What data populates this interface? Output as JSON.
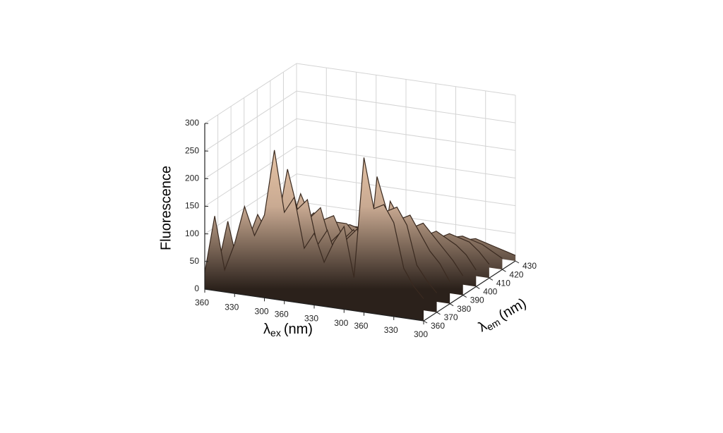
{
  "chart_data": {
    "type": "surface",
    "zlabel": "Fluorescence",
    "xlabel": {
      "symbol": "λ",
      "sub": "ex",
      "unit": "(nm)"
    },
    "ylabel": {
      "symbol": "λ",
      "sub": "em",
      "unit": "(nm)"
    },
    "xlim": [
      0,
      22
    ],
    "xticks": [
      {
        "value": 0,
        "label": "360"
      },
      {
        "value": 3,
        "label": "330"
      },
      {
        "value": 6,
        "label": "300"
      },
      {
        "value": 8,
        "label": "360"
      },
      {
        "value": 11,
        "label": "330"
      },
      {
        "value": 14,
        "label": "300"
      },
      {
        "value": 16,
        "label": "360"
      },
      {
        "value": 19,
        "label": "330"
      },
      {
        "value": 22,
        "label": "300"
      }
    ],
    "ylim": [
      360,
      430
    ],
    "yticks": [
      360,
      370,
      380,
      390,
      400,
      410,
      420,
      430
    ],
    "zlim": [
      0,
      300
    ],
    "zticks": [
      0,
      50,
      100,
      150,
      200,
      250,
      300
    ],
    "grid": true,
    "color": "#3a2a20",
    "y": [
      360,
      370,
      380,
      390,
      400,
      410,
      420,
      430
    ],
    "z": [
      [
        30,
        135,
        40,
        90,
        160,
        110,
        150,
        270,
        160,
        190,
        100,
        130,
        80,
        120,
        150,
        60,
        280,
        190,
        200,
        170,
        90,
        60,
        40
      ],
      [
        25,
        110,
        35,
        80,
        130,
        100,
        120,
        220,
        150,
        170,
        90,
        120,
        70,
        110,
        130,
        55,
        230,
        170,
        180,
        150,
        80,
        55,
        35
      ],
      [
        20,
        80,
        30,
        70,
        100,
        90,
        100,
        160,
        120,
        140,
        80,
        100,
        60,
        90,
        110,
        50,
        170,
        140,
        150,
        120,
        90,
        70,
        40
      ],
      [
        15,
        60,
        30,
        60,
        80,
        80,
        90,
        110,
        100,
        110,
        70,
        90,
        60,
        80,
        90,
        60,
        120,
        110,
        120,
        100,
        80,
        60,
        35
      ],
      [
        10,
        40,
        30,
        50,
        60,
        70,
        70,
        80,
        80,
        80,
        60,
        70,
        60,
        70,
        70,
        60,
        80,
        80,
        90,
        80,
        70,
        55,
        30
      ],
      [
        10,
        30,
        25,
        40,
        45,
        50,
        50,
        55,
        60,
        55,
        50,
        55,
        50,
        55,
        55,
        50,
        60,
        60,
        70,
        65,
        60,
        45,
        25
      ],
      [
        5,
        20,
        20,
        30,
        30,
        35,
        35,
        35,
        40,
        40,
        35,
        40,
        35,
        40,
        40,
        35,
        40,
        45,
        50,
        45,
        40,
        30,
        20
      ],
      [
        5,
        10,
        10,
        15,
        15,
        20,
        20,
        20,
        20,
        20,
        20,
        20,
        20,
        20,
        20,
        20,
        25,
        25,
        30,
        25,
        20,
        15,
        10
      ]
    ]
  }
}
